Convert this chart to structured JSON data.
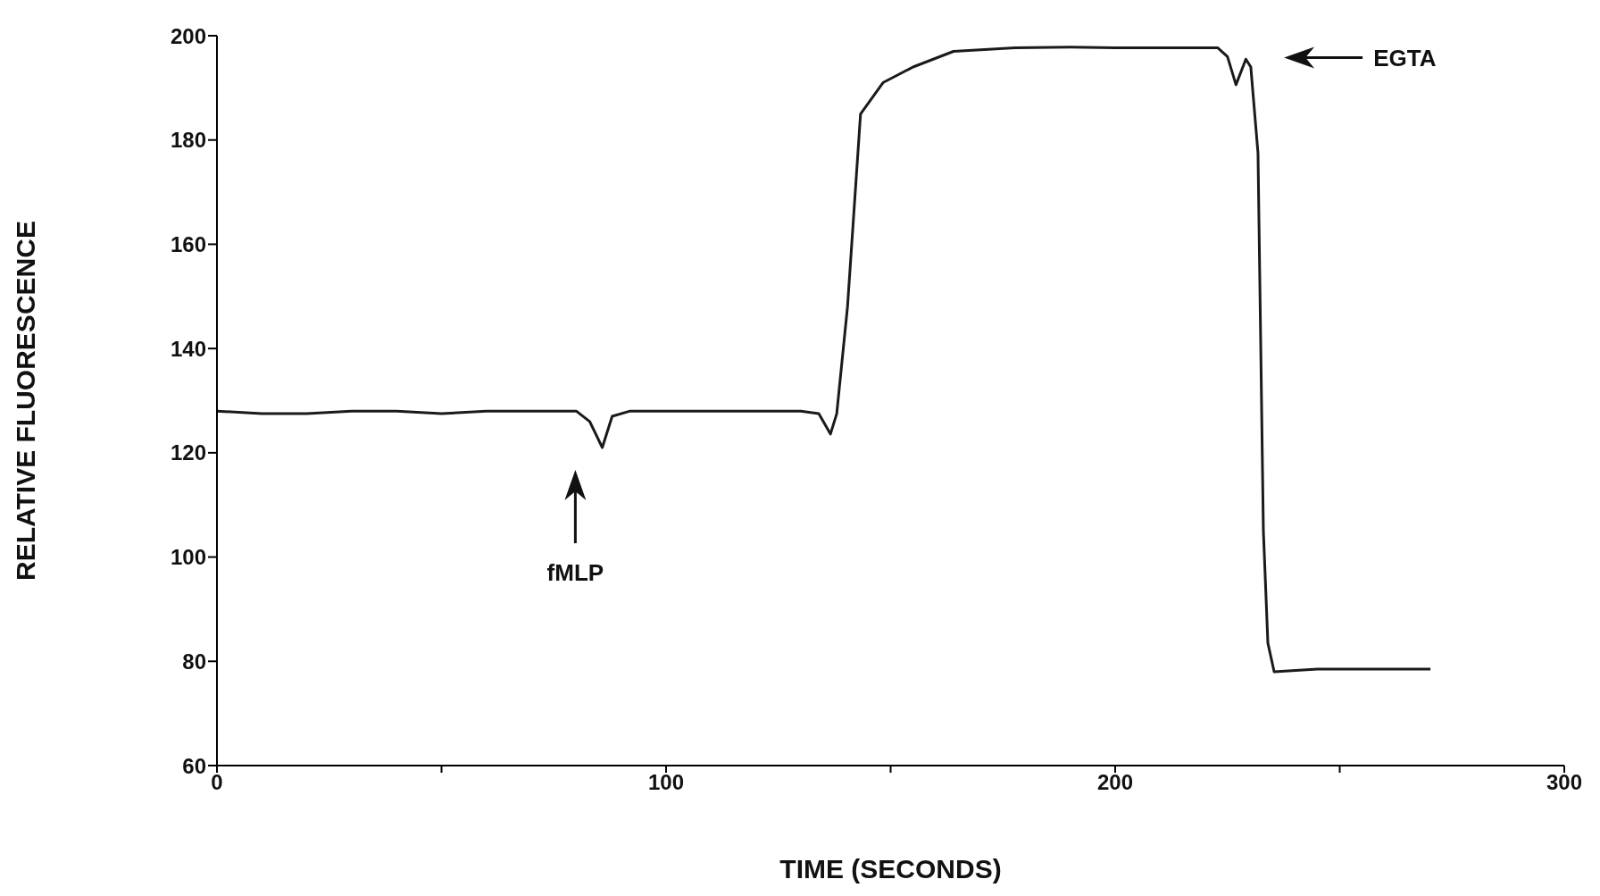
{
  "chart_data": {
    "type": "line",
    "xlabel": "TIME (SECONDS)",
    "ylabel": "RELATIVE FLUORESCENCE",
    "series": [
      {
        "color": "#1a1a1a",
        "x": [
          0,
          10,
          20,
          30,
          40,
          50,
          60,
          70,
          80,
          83,
          85.8,
          88,
          92,
          100,
          110,
          120,
          130,
          134,
          136.6,
          138,
          140.4,
          143.3,
          148.3,
          155,
          164,
          177.7,
          190,
          200,
          210,
          222.8,
          225,
          226.9,
          229.1,
          230.2,
          231.8,
          233,
          234,
          235.4,
          245,
          255,
          270.2
        ],
        "values": [
          128,
          127.5,
          127.5,
          128,
          128,
          127.5,
          128,
          128,
          128,
          126,
          121,
          127,
          128,
          128,
          128,
          128,
          128,
          127.5,
          123.6,
          127.5,
          148,
          185,
          191,
          194,
          197,
          197.7,
          197.8,
          197.7,
          197.7,
          197.7,
          196,
          190.6,
          195.5,
          194,
          177.5,
          105,
          83.5,
          78,
          78.5,
          78.5,
          78.5
        ]
      }
    ],
    "xlim": [
      0,
      300
    ],
    "xticks": [
      0,
      {
        "value": 50,
        "label": null
      },
      100,
      {
        "value": 150,
        "label": null
      },
      200,
      {
        "value": 250,
        "label": null
      },
      300
    ],
    "ylim": [
      60,
      200
    ],
    "yticks": [
      60,
      80,
      100,
      120,
      140,
      160,
      180,
      200
    ],
    "grid": false,
    "legend": false,
    "marker": "none",
    "line_style": "solid",
    "annotations": [
      "fMLP",
      "EGTA"
    ]
  }
}
